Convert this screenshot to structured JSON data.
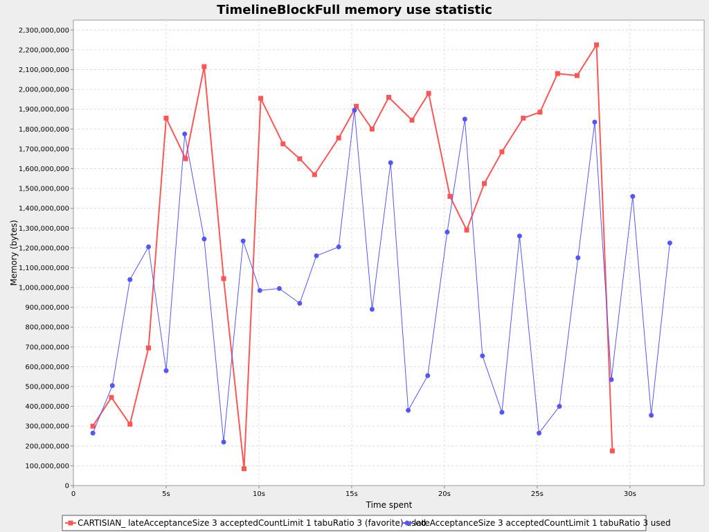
{
  "chart_data": {
    "type": "line",
    "title": "TimelineBlockFull memory use statistic",
    "xlabel": "Time spent",
    "ylabel": "Memory (bytes)",
    "xlim": [
      0,
      34
    ],
    "ylim": [
      0,
      2350000000
    ],
    "x_ticks": [
      0,
      5,
      10,
      15,
      20,
      25,
      30
    ],
    "x_tick_labels": [
      "0",
      "5s",
      "10s",
      "15s",
      "20s",
      "25s",
      "30s"
    ],
    "y_ticks": [
      0,
      100000000,
      200000000,
      300000000,
      400000000,
      500000000,
      600000000,
      700000000,
      800000000,
      900000000,
      1000000000,
      1100000000,
      1200000000,
      1300000000,
      1400000000,
      1500000000,
      1600000000,
      1700000000,
      1800000000,
      1900000000,
      2000000000,
      2100000000,
      2200000000,
      2300000000
    ],
    "y_tick_labels": [
      "0",
      "100,000,000",
      "200,000,000",
      "300,000,000",
      "400,000,000",
      "500,000,000",
      "600,000,000",
      "700,000,000",
      "800,000,000",
      "900,000,000",
      "1,000,000,000",
      "1,100,000,000",
      "1,200,000,000",
      "1,300,000,000",
      "1,400,000,000",
      "1,500,000,000",
      "1,600,000,000",
      "1,700,000,000",
      "1,800,000,000",
      "1,900,000,000",
      "2,000,000,000",
      "2,100,000,000",
      "2,200,000,000",
      "2,300,000,000"
    ],
    "grid": true,
    "legend_position": "bottom",
    "series": [
      {
        "name": "CARTISIAN_ lateAcceptanceSize 3 acceptedCountLimit 1 tabuRatio 3 (favorite) used",
        "color": "#ff5555",
        "marker": "square",
        "x": [
          1.05,
          2.05,
          3.05,
          4.05,
          5.0,
          6.05,
          7.05,
          8.1,
          9.2,
          10.1,
          11.3,
          12.2,
          13.0,
          14.3,
          15.25,
          16.1,
          17.0,
          18.25,
          19.15,
          20.3,
          21.2,
          22.15,
          23.1,
          24.25,
          25.15,
          26.1,
          27.15,
          28.2,
          29.05
        ],
        "y": [
          300000000,
          445000000,
          310000000,
          695000000,
          1855000000,
          1650000000,
          2115000000,
          1045000000,
          85000000,
          1955000000,
          1725000000,
          1650000000,
          1570000000,
          1755000000,
          1915000000,
          1800000000,
          1960000000,
          1845000000,
          1980000000,
          1460000000,
          1290000000,
          1525000000,
          1685000000,
          1855000000,
          1885000000,
          2080000000,
          2070000000,
          2225000000,
          175000000
        ]
      },
      {
        "name": "lateAcceptanceSize 3 acceptedCountLimit 1 tabuRatio 3 used",
        "color": "#5555ff",
        "marker": "circle",
        "x": [
          1.05,
          2.1,
          3.05,
          4.05,
          5.0,
          6.0,
          7.05,
          8.1,
          9.15,
          10.05,
          11.1,
          12.2,
          13.1,
          14.3,
          15.15,
          16.1,
          17.1,
          18.05,
          19.1,
          20.15,
          21.1,
          22.05,
          23.1,
          24.05,
          25.1,
          26.2,
          27.2,
          28.1,
          29.0,
          30.15,
          31.15,
          32.15
        ],
        "y": [
          265000000,
          505000000,
          1040000000,
          1205000000,
          580000000,
          1775000000,
          1245000000,
          220000000,
          1235000000,
          985000000,
          995000000,
          920000000,
          1160000000,
          1205000000,
          1895000000,
          890000000,
          1630000000,
          380000000,
          555000000,
          1280000000,
          1850000000,
          655000000,
          370000000,
          1260000000,
          265000000,
          400000000,
          1150000000,
          1835000000,
          535000000,
          1460000000,
          355000000,
          1225000000
        ]
      }
    ]
  }
}
